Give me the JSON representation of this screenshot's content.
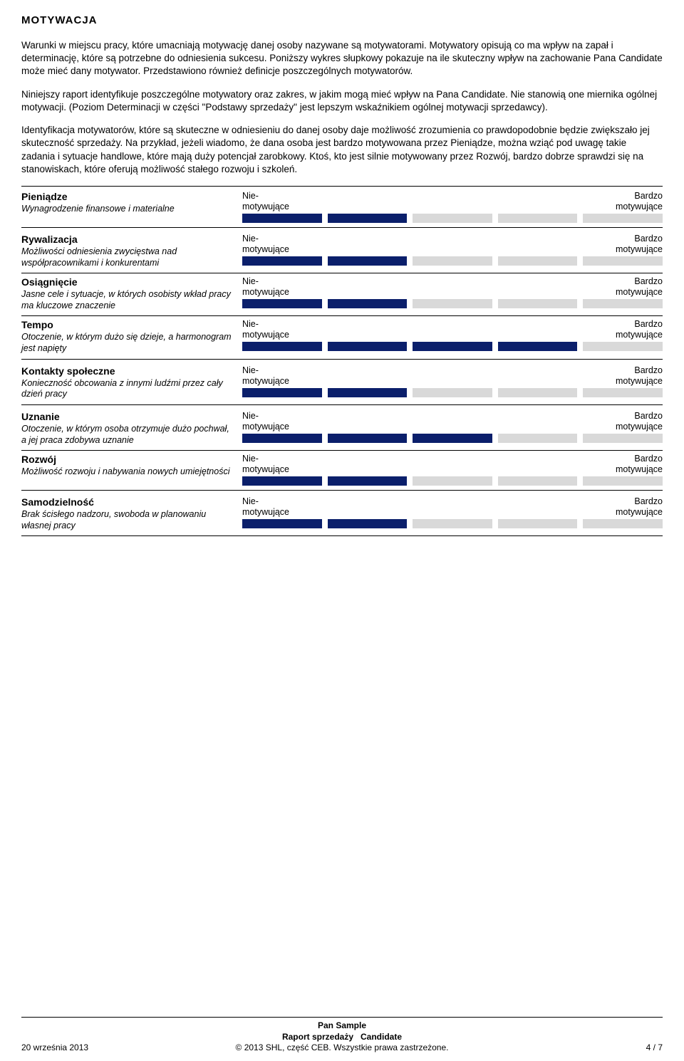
{
  "heading": "MOTYWACJA",
  "paragraphs": [
    "Warunki w miejscu pracy, które umacniają motywację danej osoby nazywane są motywatorami. Motywatory opisują co ma wpływ na zapał i determinację, które są potrzebne do odniesienia sukcesu. Poniższy wykres słupkowy pokazuje na ile skuteczny wpływ na zachowanie Pana Candidate może mieć dany motywator. Przedstawiono również definicje poszczególnych motywatorów.",
    "Niniejszy raport identyfikuje poszczególne motywatory oraz zakres, w jakim mogą mieć wpływ na Pana Candidate. Nie stanowią one miernika ogólnej motywacji. (Poziom Determinacji w części \"Podstawy sprzedaży\" jest lepszym wskaźnikiem ogólnej motywacji sprzedawcy).",
    "Identyfikacja motywatorów, które są skuteczne w odniesieniu do danej osoby daje możliwość zrozumienia co prawdopodobnie będzie zwiększało jej skuteczność sprzedaży. Na przykład, jeżeli wiadomo, że dana osoba jest bardzo motywowana przez Pieniądze, można wziąć pod uwagę takie zadania i sytuacje handlowe, które mają duży potencjał zarobkowy. Ktoś, kto jest silnie motywowany przez Rozwój, bardzo dobrze sprawdzi się na stanowiskach, które oferują możliwość stałego rozwoju i szkoleń."
  ],
  "scale": {
    "total_segments": 5,
    "left_label_1": "Nie-",
    "left_label_2": "motywujące",
    "right_label_1": "Bardzo",
    "right_label_2": "motywujące",
    "empty_color": "#d9d9d9",
    "fill_color": "#0b1f6b"
  },
  "groups": [
    {
      "items": [
        {
          "name": "Pieniądze",
          "desc": "Wynagrodzenie finansowe i materialne",
          "filled": 2
        }
      ]
    },
    {
      "items": [
        {
          "name": "Rywalizacja",
          "desc": "Możliwości odniesienia zwycięstwa nad współpracownikami i konkurentami",
          "filled": 2
        },
        {
          "name": "Osiągnięcie",
          "desc": "Jasne cele i sytuacje, w których osobisty wkład pracy ma kluczowe znaczenie",
          "filled": 2
        },
        {
          "name": "Tempo",
          "desc": "Otoczenie, w którym dużo się dzieje, a harmonogram jest napięty",
          "filled": 4
        }
      ]
    },
    {
      "items": [
        {
          "name": "Kontakty społeczne",
          "desc": "Konieczność obcowania z innymi ludźmi przez cały dzień pracy",
          "filled": 2
        }
      ]
    },
    {
      "items": [
        {
          "name": "Uznanie",
          "desc": "Otoczenie, w którym osoba otrzymuje dużo pochwał, a jej praca zdobywa uznanie",
          "filled": 3
        },
        {
          "name": "Rozwój",
          "desc": "Możliwość rozwoju i nabywania nowych umiejętności",
          "filled": 2
        }
      ]
    },
    {
      "items": [
        {
          "name": "Samodzielność",
          "desc": "Brak ścisłego nadzoru, swoboda w planowaniu własnej pracy",
          "filled": 2
        }
      ]
    }
  ],
  "footer": {
    "date": "20 września 2013",
    "center_line1": "Pan Sample",
    "center_line2_a": "Raport sprzedaży",
    "center_line2_b": "Candidate",
    "center_line3": "© 2013 SHL, część CEB. Wszystkie prawa zastrzeżone.",
    "page": "4 / 7"
  }
}
